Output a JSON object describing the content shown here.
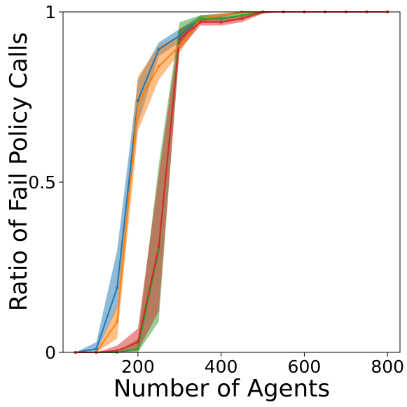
{
  "chart_data": {
    "type": "line",
    "xlabel": "Number of Agents",
    "ylabel": "Ratio of Fail Policy Calls",
    "xlim": [
      20,
      830
    ],
    "ylim": [
      0,
      1
    ],
    "xticks": [
      200,
      400,
      600,
      800
    ],
    "xtick_labels": [
      "200",
      "400",
      "600",
      "800"
    ],
    "yticks": [
      0,
      0.5,
      1
    ],
    "ytick_labels": [
      "0",
      "0.5",
      "1"
    ],
    "grid": false,
    "legend": "none",
    "x": [
      50,
      100,
      150,
      200,
      250,
      300,
      350,
      400,
      450,
      500,
      550,
      600,
      650,
      700,
      750,
      800
    ],
    "series": [
      {
        "color": "#1f77b4",
        "values": [
          0.0,
          0.01,
          0.19,
          0.74,
          0.89,
          0.93,
          0.98,
          0.99,
          1.0,
          1.0,
          1.0,
          1.0,
          1.0,
          1.0,
          1.0,
          1.0
        ],
        "lower": [
          0.0,
          0.0,
          0.13,
          0.67,
          0.87,
          0.91,
          0.97,
          0.985,
          0.995,
          1.0,
          1.0,
          1.0,
          1.0,
          1.0,
          1.0,
          1.0
        ],
        "upper": [
          0.0,
          0.03,
          0.3,
          0.8,
          0.91,
          0.95,
          0.99,
          0.995,
          1.0,
          1.0,
          1.0,
          1.0,
          1.0,
          1.0,
          1.0,
          1.0
        ]
      },
      {
        "color": "#ff7f0e",
        "values": [
          0.0,
          0.0,
          0.09,
          0.73,
          0.84,
          0.9,
          0.98,
          0.99,
          1.0,
          1.0,
          1.0,
          1.0,
          1.0,
          1.0,
          1.0,
          1.0
        ],
        "lower": [
          0.0,
          0.0,
          0.04,
          0.65,
          0.8,
          0.88,
          0.97,
          0.985,
          0.995,
          1.0,
          1.0,
          1.0,
          1.0,
          1.0,
          1.0,
          1.0
        ],
        "upper": [
          0.0,
          0.0,
          0.14,
          0.81,
          0.9,
          0.93,
          0.99,
          0.995,
          1.0,
          1.0,
          1.0,
          1.0,
          1.0,
          1.0,
          1.0,
          1.0
        ]
      },
      {
        "color": "#2ca02c",
        "values": [
          0.0,
          0.0,
          0.0,
          0.01,
          0.3,
          0.94,
          0.98,
          0.98,
          0.99,
          1.0,
          1.0,
          1.0,
          1.0,
          1.0,
          1.0,
          1.0
        ],
        "lower": [
          0.0,
          0.0,
          0.0,
          0.0,
          0.09,
          0.9,
          0.97,
          0.97,
          0.98,
          0.995,
          1.0,
          1.0,
          1.0,
          1.0,
          1.0,
          1.0
        ],
        "upper": [
          0.0,
          0.0,
          0.0,
          0.04,
          0.55,
          0.97,
          0.99,
          0.99,
          1.0,
          1.0,
          1.0,
          1.0,
          1.0,
          1.0,
          1.0,
          1.0
        ]
      },
      {
        "color": "#d62728",
        "values": [
          0.0,
          0.0,
          0.005,
          0.03,
          0.31,
          0.92,
          0.97,
          0.97,
          0.98,
          1.0,
          1.0,
          1.0,
          1.0,
          1.0,
          1.0,
          1.0
        ],
        "lower": [
          0.0,
          0.0,
          0.0,
          0.005,
          0.12,
          0.89,
          0.96,
          0.96,
          0.97,
          0.995,
          1.0,
          1.0,
          1.0,
          1.0,
          1.0,
          1.0
        ],
        "upper": [
          0.0,
          0.0,
          0.02,
          0.07,
          0.52,
          0.95,
          0.98,
          0.985,
          0.99,
          1.0,
          1.0,
          1.0,
          1.0,
          1.0,
          1.0,
          1.0
        ]
      }
    ]
  }
}
